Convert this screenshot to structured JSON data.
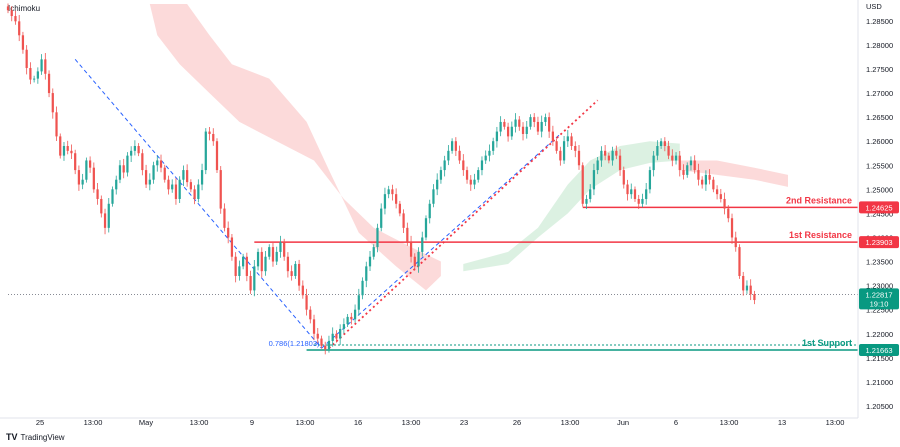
{
  "indicator_label": "Ichimoku",
  "brand": {
    "mark": "TV",
    "name": "TradingView"
  },
  "colors": {
    "bull": "#26a69a",
    "bear": "#ef5350",
    "resistance": "#f23645",
    "support": "#089981",
    "cloud_bear": "#fbd3d3",
    "cloud_bull": "#d6eedd",
    "trendline_dashed": "#2962ff",
    "trendline_dotted": "#f23645",
    "current_price": "#089981"
  },
  "chart_data": {
    "type": "candlestick",
    "symbol": "",
    "y_axis_label": "USD",
    "ylim": [
      1.2025,
      1.2885
    ],
    "y_ticks": [
      "1.28500",
      "1.28000",
      "1.27500",
      "1.27000",
      "1.26500",
      "1.26000",
      "1.25500",
      "1.25000",
      "1.24500",
      "1.24000",
      "1.23500",
      "1.23000",
      "1.22500",
      "1.22000",
      "1.21500",
      "1.21000",
      "1.20500"
    ],
    "x_ticks": [
      "25",
      "13:00",
      "May",
      "13:00",
      "9",
      "13:00",
      "16",
      "13:00",
      "23",
      "26",
      "13:00",
      "Jun",
      "6",
      "13:00",
      "13",
      "13:00"
    ],
    "x_range": [
      0,
      209
    ],
    "closes": [
      1.2872,
      1.286,
      1.2849,
      1.282,
      1.279,
      1.2752,
      1.2728,
      1.273,
      1.2745,
      1.277,
      1.274,
      1.27,
      1.266,
      1.261,
      1.257,
      1.259,
      1.258,
      1.2575,
      1.254,
      1.251,
      1.252,
      1.256,
      1.2545,
      1.25,
      1.248,
      1.245,
      1.242,
      1.247,
      1.25,
      1.252,
      1.255,
      1.2535,
      1.257,
      1.258,
      1.259,
      1.2575,
      1.254,
      1.251,
      1.252,
      1.255,
      1.256,
      1.2545,
      1.252,
      1.25,
      1.251,
      1.248,
      1.252,
      1.254,
      1.2515,
      1.25,
      1.248,
      1.251,
      1.254,
      1.262,
      1.2615,
      1.26,
      1.254,
      1.246,
      1.242,
      1.24,
      1.236,
      1.232,
      1.234,
      1.236,
      1.232,
      1.229,
      1.234,
      1.237,
      1.233,
      1.236,
      1.238,
      1.235,
      1.237,
      1.239,
      1.236,
      1.233,
      1.232,
      1.2345,
      1.23,
      1.228,
      1.225,
      1.223,
      1.22,
      1.219,
      1.2175,
      1.2168,
      1.2185,
      1.22,
      1.219,
      1.221,
      1.222,
      1.2235,
      1.223,
      1.225,
      1.228,
      1.231,
      1.234,
      1.236,
      1.238,
      1.242,
      1.246,
      1.249,
      1.25,
      1.249,
      1.247,
      1.245,
      1.242,
      1.239,
      1.236,
      1.234,
      1.237,
      1.24,
      1.244,
      1.247,
      1.25,
      1.252,
      1.254,
      1.256,
      1.258,
      1.26,
      1.258,
      1.256,
      1.254,
      1.252,
      1.251,
      1.252,
      1.254,
      1.256,
      1.257,
      1.258,
      1.26,
      1.262,
      1.264,
      1.263,
      1.261,
      1.263,
      1.2645,
      1.263,
      1.2615,
      1.263,
      1.265,
      1.264,
      1.262,
      1.264,
      1.265,
      1.262,
      1.26,
      1.258,
      1.256,
      1.26,
      1.261,
      1.259,
      1.258,
      1.255,
      1.247,
      1.248,
      1.25,
      1.254,
      1.256,
      1.258,
      1.257,
      1.256,
      1.258,
      1.257,
      1.254,
      1.251,
      1.249,
      1.25,
      1.248,
      1.247,
      1.248,
      1.25,
      1.254,
      1.257,
      1.259,
      1.26,
      1.259,
      1.257,
      1.256,
      1.257,
      1.254,
      1.253,
      1.255,
      1.256,
      1.254,
      1.252,
      1.251,
      1.253,
      1.252,
      1.25,
      1.249,
      1.248,
      1.246,
      1.244,
      1.24,
      1.238,
      1.232,
      1.229,
      1.23,
      1.2282,
      1.227
    ],
    "support_resistance": [
      {
        "name": "2nd Resistance",
        "value": 1.24625,
        "value_label": "1.24625",
        "color": "#f23645"
      },
      {
        "name": "1st Resistance",
        "value": 1.23903,
        "value_label": "1.23903",
        "color": "#f23645"
      },
      {
        "name": "1st Support",
        "value": 1.21663,
        "value_label": "1.21663",
        "color": "#089981"
      }
    ],
    "fib_label": "0.786(1.21803)",
    "fib_value": 1.21803,
    "current_price": {
      "value": 1.22817,
      "label": "1.22817",
      "countdown": "19:10"
    },
    "trendline_dashed": {
      "from": [
        18,
        1.277
      ],
      "to": [
        84,
        1.217
      ]
    },
    "trendline_dashed_upper": {
      "from": [
        84,
        1.217
      ],
      "to": [
        148,
        1.2615
      ]
    },
    "trendline_dotted": {
      "from": [
        86,
        1.217
      ],
      "to": [
        158,
        1.2685
      ]
    },
    "cloud": [
      {
        "kind": "bear",
        "poly": [
          [
            38,
            1.2885
          ],
          [
            48,
            1.2885
          ],
          [
            54,
            1.282
          ],
          [
            60,
            1.276
          ],
          [
            70,
            1.273
          ],
          [
            80,
            1.264
          ],
          [
            86,
            1.254
          ],
          [
            94,
            1.241
          ],
          [
            104,
            1.234
          ],
          [
            112,
            1.229
          ],
          [
            116,
            1.232
          ],
          [
            116,
            1.235
          ],
          [
            108,
            1.238
          ],
          [
            98,
            1.242
          ],
          [
            90,
            1.248
          ],
          [
            82,
            1.256
          ],
          [
            72,
            1.26
          ],
          [
            62,
            1.264
          ],
          [
            54,
            1.27
          ],
          [
            46,
            1.276
          ],
          [
            40,
            1.282
          ]
        ]
      },
      {
        "kind": "bull",
        "poly": [
          [
            122,
            1.2345
          ],
          [
            134,
            1.237
          ],
          [
            142,
            1.242
          ],
          [
            150,
            1.251
          ],
          [
            156,
            1.256
          ],
          [
            164,
            1.259
          ],
          [
            172,
            1.26
          ],
          [
            180,
            1.2595
          ],
          [
            180,
            1.256
          ],
          [
            172,
            1.2555
          ],
          [
            164,
            1.254
          ],
          [
            156,
            1.25
          ],
          [
            150,
            1.245
          ],
          [
            142,
            1.24
          ],
          [
            134,
            1.2345
          ],
          [
            122,
            1.233
          ]
        ]
      },
      {
        "kind": "bear",
        "poly": [
          [
            180,
            1.256
          ],
          [
            190,
            1.256
          ],
          [
            200,
            1.2545
          ],
          [
            209,
            1.253
          ],
          [
            209,
            1.2505
          ],
          [
            200,
            1.252
          ],
          [
            190,
            1.253
          ],
          [
            180,
            1.254
          ]
        ]
      }
    ]
  }
}
